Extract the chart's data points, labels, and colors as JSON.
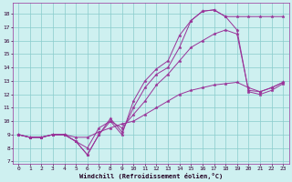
{
  "xlabel": "Windchill (Refroidissement éolien,°C)",
  "background_color": "#cef0f0",
  "grid_color": "#88cccc",
  "line_color": "#993399",
  "xlim": [
    -0.5,
    23.5
  ],
  "ylim": [
    6.8,
    18.8
  ],
  "yticks": [
    7,
    8,
    9,
    10,
    11,
    12,
    13,
    14,
    15,
    16,
    17,
    18
  ],
  "xticks": [
    0,
    1,
    2,
    3,
    4,
    5,
    6,
    7,
    8,
    9,
    10,
    11,
    12,
    13,
    14,
    15,
    16,
    17,
    18,
    19,
    20,
    21,
    22,
    23
  ],
  "lines": [
    {
      "x": [
        0,
        1,
        2,
        3,
        4,
        5,
        6,
        7,
        8,
        9,
        10,
        11,
        12,
        13,
        14,
        15,
        16,
        17,
        18,
        19,
        20,
        21,
        22,
        23
      ],
      "y": [
        9.0,
        8.8,
        8.8,
        9.0,
        9.0,
        8.8,
        8.8,
        9.2,
        9.5,
        9.8,
        10.0,
        10.5,
        11.0,
        11.5,
        12.0,
        12.3,
        12.5,
        12.7,
        12.8,
        12.9,
        12.5,
        12.2,
        12.5,
        12.9
      ]
    },
    {
      "x": [
        0,
        1,
        2,
        3,
        4,
        5,
        6,
        7,
        8,
        9,
        10,
        11,
        12,
        13,
        14,
        15,
        16,
        17,
        18,
        19,
        20,
        21,
        22,
        23
      ],
      "y": [
        9.0,
        8.8,
        8.8,
        9.0,
        9.0,
        8.5,
        8.0,
        9.5,
        10.0,
        9.5,
        10.5,
        11.5,
        12.7,
        13.5,
        14.5,
        15.5,
        16.0,
        16.5,
        16.8,
        16.5,
        12.3,
        12.2,
        12.5,
        12.9
      ]
    },
    {
      "x": [
        0,
        1,
        2,
        3,
        4,
        5,
        6,
        7,
        8,
        9,
        10,
        11,
        12,
        13,
        14,
        15,
        16,
        17,
        18,
        19,
        20,
        21,
        22,
        23
      ],
      "y": [
        9.0,
        8.8,
        8.8,
        9.0,
        9.0,
        8.5,
        7.5,
        9.0,
        10.2,
        9.2,
        11.0,
        12.5,
        13.5,
        14.0,
        15.5,
        17.5,
        18.2,
        18.3,
        17.8,
        16.8,
        12.2,
        12.0,
        12.3,
        12.8
      ]
    },
    {
      "x": [
        0,
        1,
        2,
        3,
        4,
        5,
        6,
        7,
        8,
        9,
        10,
        11,
        12,
        13,
        14,
        15,
        16,
        17,
        18,
        19,
        20,
        21,
        22,
        23
      ],
      "y": [
        9.0,
        8.8,
        8.8,
        9.0,
        9.0,
        8.5,
        7.5,
        9.0,
        10.0,
        9.0,
        11.5,
        13.0,
        13.9,
        14.5,
        16.4,
        17.5,
        18.2,
        18.3,
        17.8,
        17.8,
        17.8,
        17.8,
        17.8,
        17.8
      ]
    }
  ]
}
